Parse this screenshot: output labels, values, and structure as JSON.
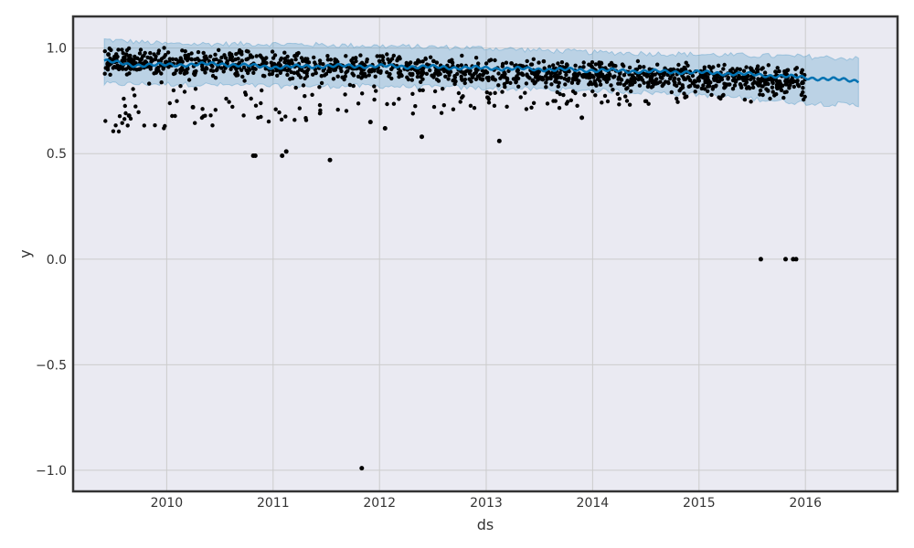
{
  "chart_data": {
    "type": "scatter",
    "title": "",
    "xlabel": "ds",
    "ylabel": "y",
    "xlim": [
      "2009-02-14",
      "2016-11-12"
    ],
    "ylim": [
      -1.1,
      1.15
    ],
    "grid": true,
    "legend": "none",
    "x_ticks": [
      "2010",
      "2011",
      "2012",
      "2013",
      "2014",
      "2015",
      "2016"
    ],
    "y_ticks": [
      "1.0",
      "0.5",
      "0.0",
      "−0.5",
      "−1.0"
    ],
    "colors": {
      "plot_background": "#eaeaf2",
      "grid": "#cccccc",
      "points": "#000000",
      "forecast_line": "#0072b2",
      "uncertainty_band": "#0072b2",
      "frame": "#333333"
    },
    "series": [
      {
        "kind": "observed_points",
        "outliers": [
          {
            "x": "2009-06-15",
            "y": 0.97
          },
          {
            "x": "2009-08-25",
            "y": 0.68
          },
          {
            "x": "2010-04-01",
            "y": 0.72
          },
          {
            "x": "2010-10-25",
            "y": 0.49
          },
          {
            "x": "2010-11-01",
            "y": 0.49
          },
          {
            "x": "2011-02-01",
            "y": 0.49
          },
          {
            "x": "2011-02-15",
            "y": 0.51
          },
          {
            "x": "2011-07-15",
            "y": 0.47
          },
          {
            "x": "2011-11-01",
            "y": -0.99
          },
          {
            "x": "2011-12-01",
            "y": 0.65
          },
          {
            "x": "2012-01-20",
            "y": 0.62
          },
          {
            "x": "2012-05-25",
            "y": 0.58
          },
          {
            "x": "2013-02-15",
            "y": 0.56
          },
          {
            "x": "2013-11-25",
            "y": 0.67
          },
          {
            "x": "2015-08-01",
            "y": 0.0
          },
          {
            "x": "2015-10-25",
            "y": 0.0
          },
          {
            "x": "2015-11-20",
            "y": 0.0
          },
          {
            "x": "2015-11-30",
            "y": 0.0
          }
        ],
        "cluster": {
          "x_start": "2009-06-01",
          "x_end": "2016-01-01",
          "band_center_start": 0.94,
          "band_center_end": 0.85,
          "band_spread": 0.045,
          "lower_scatter_min": 0.6,
          "n_points": 1500
        }
      },
      {
        "kind": "forecast_line",
        "points": [
          {
            "x": "2009-06-01",
            "y": 0.94
          },
          {
            "x": "2009-09-01",
            "y": 0.92
          },
          {
            "x": "2010-01-01",
            "y": 0.92
          },
          {
            "x": "2010-07-01",
            "y": 0.925
          },
          {
            "x": "2011-01-01",
            "y": 0.91
          },
          {
            "x": "2011-07-01",
            "y": 0.915
          },
          {
            "x": "2012-01-01",
            "y": 0.915
          },
          {
            "x": "2012-07-01",
            "y": 0.91
          },
          {
            "x": "2013-01-01",
            "y": 0.905
          },
          {
            "x": "2013-07-01",
            "y": 0.9
          },
          {
            "x": "2014-01-01",
            "y": 0.895
          },
          {
            "x": "2014-07-01",
            "y": 0.89
          },
          {
            "x": "2015-01-01",
            "y": 0.885
          },
          {
            "x": "2015-07-01",
            "y": 0.875
          },
          {
            "x": "2016-01-01",
            "y": 0.86
          },
          {
            "x": "2016-07-01",
            "y": 0.845
          }
        ],
        "upper": [
          {
            "x": "2009-06-01",
            "y": 1.04
          },
          {
            "x": "2010-01-01",
            "y": 1.02
          },
          {
            "x": "2011-01-01",
            "y": 1.02
          },
          {
            "x": "2012-01-01",
            "y": 1.01
          },
          {
            "x": "2013-01-01",
            "y": 1.0
          },
          {
            "x": "2014-01-01",
            "y": 0.98
          },
          {
            "x": "2015-01-01",
            "y": 0.97
          },
          {
            "x": "2016-01-01",
            "y": 0.96
          },
          {
            "x": "2016-07-01",
            "y": 0.95
          }
        ],
        "lower": [
          {
            "x": "2009-06-01",
            "y": 0.83
          },
          {
            "x": "2010-01-01",
            "y": 0.83
          },
          {
            "x": "2011-01-01",
            "y": 0.82
          },
          {
            "x": "2012-01-01",
            "y": 0.82
          },
          {
            "x": "2013-01-01",
            "y": 0.81
          },
          {
            "x": "2014-01-01",
            "y": 0.8
          },
          {
            "x": "2015-01-01",
            "y": 0.78
          },
          {
            "x": "2016-01-01",
            "y": 0.74
          },
          {
            "x": "2016-07-01",
            "y": 0.73
          }
        ]
      }
    ]
  }
}
